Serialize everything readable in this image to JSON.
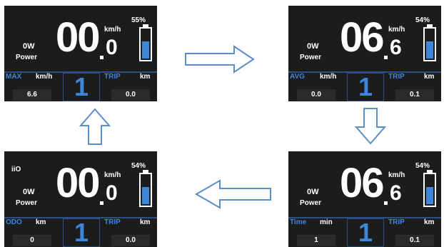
{
  "screens": [
    {
      "power_value": "0W",
      "power_label": "Power",
      "speed_int": "00",
      "speed_dec": "0",
      "speed_unit": "km/h",
      "battery_pct": "55%",
      "battery_level": 0.55,
      "left_label": "MAX",
      "left_unit": "km/h",
      "left_value": "6.6",
      "gear": "1",
      "right_label": "TRIP",
      "right_unit": "km",
      "right_value": "0.0",
      "top_icon": ""
    },
    {
      "power_value": "0W",
      "power_label": "Power",
      "speed_int": "06",
      "speed_dec": "6",
      "speed_unit": "km/h",
      "battery_pct": "54%",
      "battery_level": 0.54,
      "left_label": "AVG",
      "left_unit": "km/h",
      "left_value": "0.0",
      "gear": "1",
      "right_label": "TRIP",
      "right_unit": "km",
      "right_value": "0.1",
      "top_icon": ""
    },
    {
      "power_value": "0W",
      "power_label": "Power",
      "speed_int": "00",
      "speed_dec": "0",
      "speed_unit": "km/h",
      "battery_pct": "54%",
      "battery_level": 0.54,
      "left_label": "ODO",
      "left_unit": "km",
      "left_value": "0",
      "gear": "1",
      "right_label": "TRIP",
      "right_unit": "km",
      "right_value": "0.0",
      "top_icon": "iiO"
    },
    {
      "power_value": "0W",
      "power_label": "Power",
      "speed_int": "06",
      "speed_dec": "6",
      "speed_unit": "km/h",
      "battery_pct": "54%",
      "battery_level": 0.54,
      "left_label": "Time",
      "left_unit": "min",
      "left_value": "1",
      "gear": "1",
      "right_label": "TRIP",
      "right_unit": "km",
      "right_value": "0.1",
      "top_icon": ""
    }
  ],
  "arrows": [
    {
      "name": "arrow-right-icon"
    },
    {
      "name": "arrow-down-icon"
    },
    {
      "name": "arrow-left-icon"
    },
    {
      "name": "arrow-up-icon"
    }
  ],
  "colors": {
    "accent": "#3d86d8",
    "screen_bg": "#1c1c1c",
    "arrow_stroke": "#5b8ec9"
  }
}
